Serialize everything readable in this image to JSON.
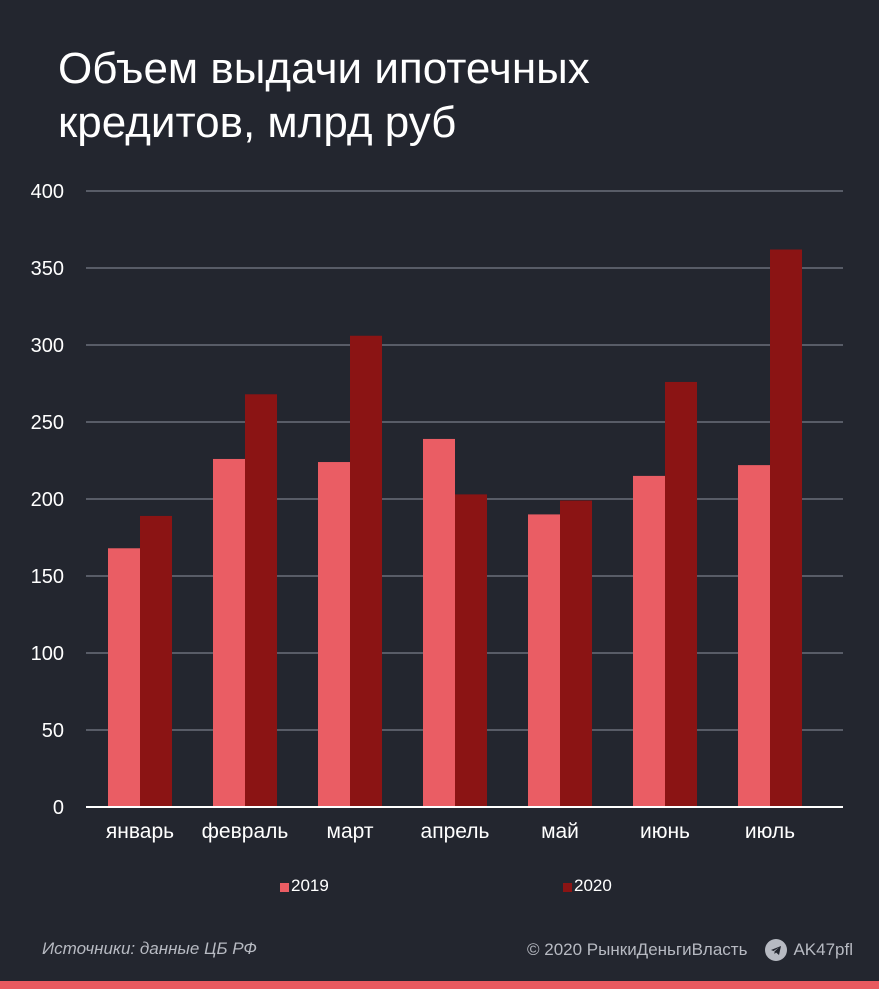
{
  "title": "Объем выдачи ипотечных\nкредитов, млрд руб",
  "colors": {
    "background": "#23262f",
    "series_2019": "#ea5d64",
    "series_2020": "#8b1414",
    "gridline": "#6b6f7a",
    "accent_bar": "#e85a5f"
  },
  "chart_data": {
    "type": "bar",
    "categories": [
      "январь",
      "февраль",
      "март",
      "апрель",
      "май",
      "июнь",
      "июль"
    ],
    "series": [
      {
        "name": "2019",
        "values": [
          168,
          226,
          224,
          239,
          190,
          215,
          222
        ]
      },
      {
        "name": "2020",
        "values": [
          189,
          268,
          306,
          203,
          199,
          276,
          362
        ]
      }
    ],
    "yticks": [
      0,
      50,
      100,
      150,
      200,
      250,
      300,
      350,
      400
    ],
    "ylim": [
      0,
      400
    ],
    "grid": true,
    "legend_position": "bottom"
  },
  "legend": {
    "item_2019": "2019",
    "item_2020": "2020"
  },
  "footer": {
    "source": "Источники: данные ЦБ РФ",
    "copyright": "© 2020  РынкиДеньгиВласть",
    "handle": "AK47pfl",
    "telegram_icon": "telegram-icon"
  }
}
